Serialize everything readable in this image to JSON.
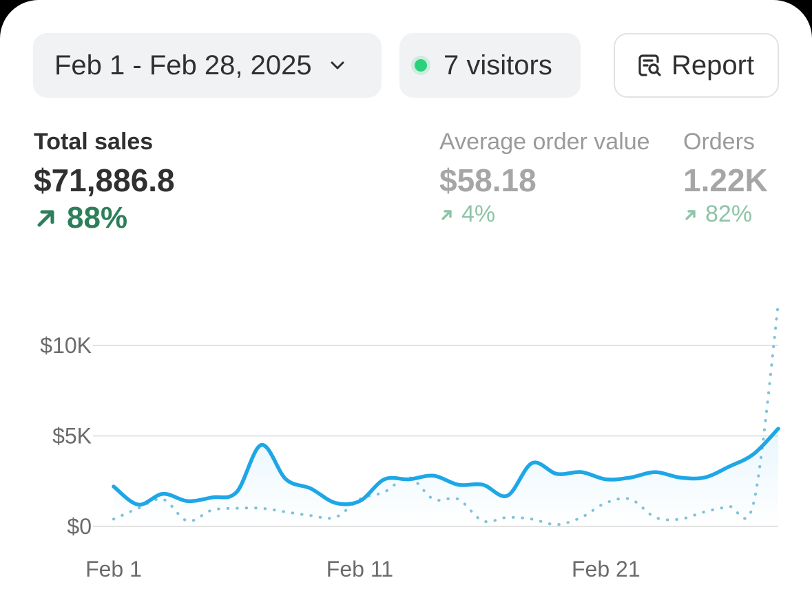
{
  "header": {
    "date_range_label": "Feb 1 - Feb 28, 2025",
    "visitors_label": "7 visitors",
    "report_label": "Report"
  },
  "metrics": [
    {
      "label": "Total sales",
      "value": "$71,886.8",
      "change": "88%",
      "direction": "up"
    },
    {
      "label": "Average order value",
      "value": "$58.18",
      "change": "4%",
      "direction": "up"
    },
    {
      "label": "Orders",
      "value": "1.22K",
      "change": "82%",
      "direction": "up"
    }
  ],
  "icons": {
    "date_dropdown": "chevron-down-icon",
    "visitors_status": "live-dot-icon",
    "report": "report-search-icon",
    "change": "arrow-up-right-icon"
  },
  "colors": {
    "current_series": "#1ea7e6",
    "comparison_series": "#7fc2d8",
    "positive_change": "#2d7f5a",
    "live_dot": "#29d17b"
  },
  "chart_data": {
    "type": "line",
    "x": [
      "Feb 1",
      "Feb 2",
      "Feb 3",
      "Feb 4",
      "Feb 5",
      "Feb 6",
      "Feb 7",
      "Feb 8",
      "Feb 9",
      "Feb 10",
      "Feb 11",
      "Feb 12",
      "Feb 13",
      "Feb 14",
      "Feb 15",
      "Feb 16",
      "Feb 17",
      "Feb 18",
      "Feb 19",
      "Feb 20",
      "Feb 21",
      "Feb 22",
      "Feb 23",
      "Feb 24",
      "Feb 25",
      "Feb 26",
      "Feb 27",
      "Feb 28"
    ],
    "x_ticks": [
      "Feb 1",
      "Feb 11",
      "Feb 21"
    ],
    "y_ticks": [
      "$0",
      "$5K",
      "$10K"
    ],
    "ylim": [
      0,
      13500
    ],
    "grid": true,
    "series": [
      {
        "style": "solid",
        "values": [
          2200,
          1200,
          1800,
          1400,
          1600,
          1900,
          4500,
          2600,
          2100,
          1300,
          1400,
          2600,
          2600,
          2800,
          2300,
          2300,
          1700,
          3500,
          2900,
          3000,
          2600,
          2700,
          3000,
          2700,
          2700,
          3300,
          4000,
          5400
        ]
      },
      {
        "style": "dotted",
        "values": [
          400,
          1000,
          1500,
          300,
          900,
          1000,
          1000,
          800,
          600,
          500,
          1500,
          1900,
          2700,
          1500,
          1500,
          300,
          500,
          400,
          100,
          500,
          1300,
          1500,
          500,
          400,
          800,
          1100,
          1300,
          12300
        ]
      }
    ]
  }
}
